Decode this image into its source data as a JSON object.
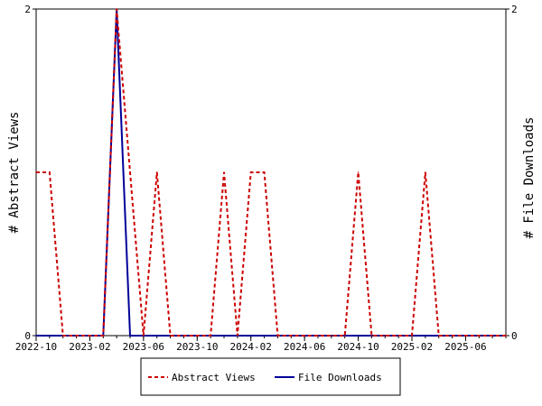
{
  "chart_data": {
    "type": "line",
    "title": "",
    "y_left_label": "# Abstract Views",
    "y_right_label": "# File Downloads",
    "y_left_range": [
      0,
      2
    ],
    "y_right_range": [
      0,
      2
    ],
    "y_left_ticks": [
      "0",
      "2"
    ],
    "y_right_ticks": [
      "0",
      "2"
    ],
    "x_range": [
      "2022-10",
      "2025-09"
    ],
    "x_tick_labels": [
      "2022-10",
      "2023-02",
      "2023-06",
      "2023-10",
      "2024-02",
      "2024-06",
      "2024-10",
      "2025-02",
      "2025-06"
    ],
    "legend_placement": "bottom",
    "grid": false,
    "series": [
      {
        "name": "Abstract Views",
        "color": "#cc0000",
        "style": "dashed",
        "axis": "left",
        "points": [
          [
            "2022-10",
            1
          ],
          [
            "2022-11",
            1
          ],
          [
            "2022-12",
            0
          ],
          [
            "2023-01",
            0
          ],
          [
            "2023-02",
            0
          ],
          [
            "2023-03",
            0
          ],
          [
            "2023-04",
            2
          ],
          [
            "2023-05",
            1
          ],
          [
            "2023-06",
            0
          ],
          [
            "2023-07",
            1
          ],
          [
            "2023-08",
            0
          ],
          [
            "2023-09",
            0
          ],
          [
            "2023-10",
            0
          ],
          [
            "2023-11",
            0
          ],
          [
            "2023-12",
            1
          ],
          [
            "2024-01",
            0
          ],
          [
            "2024-02",
            1
          ],
          [
            "2024-03",
            1
          ],
          [
            "2024-04",
            0
          ],
          [
            "2024-05",
            0
          ],
          [
            "2024-06",
            0
          ],
          [
            "2024-07",
            0
          ],
          [
            "2024-08",
            0
          ],
          [
            "2024-09",
            0
          ],
          [
            "2024-10",
            1
          ],
          [
            "2024-11",
            0
          ],
          [
            "2024-12",
            0
          ],
          [
            "2025-01",
            0
          ],
          [
            "2025-02",
            0
          ],
          [
            "2025-03",
            1
          ],
          [
            "2025-04",
            0
          ],
          [
            "2025-05",
            0
          ],
          [
            "2025-06",
            0
          ],
          [
            "2025-07",
            0
          ],
          [
            "2025-08",
            0
          ],
          [
            "2025-09",
            0
          ]
        ]
      },
      {
        "name": "File Downloads",
        "color": "#000099",
        "style": "solid",
        "axis": "right",
        "points": [
          [
            "2022-10",
            0
          ],
          [
            "2022-11",
            0
          ],
          [
            "2022-12",
            0
          ],
          [
            "2023-01",
            0
          ],
          [
            "2023-02",
            0
          ],
          [
            "2023-03",
            0
          ],
          [
            "2023-04",
            2
          ],
          [
            "2023-05",
            0
          ],
          [
            "2023-06",
            0
          ],
          [
            "2023-07",
            0
          ],
          [
            "2023-08",
            0
          ],
          [
            "2023-09",
            0
          ],
          [
            "2023-10",
            0
          ],
          [
            "2023-11",
            0
          ],
          [
            "2023-12",
            0
          ],
          [
            "2024-01",
            0
          ],
          [
            "2024-02",
            0
          ],
          [
            "2024-03",
            0
          ],
          [
            "2024-04",
            0
          ],
          [
            "2024-05",
            0
          ],
          [
            "2024-06",
            0
          ],
          [
            "2024-07",
            0
          ],
          [
            "2024-08",
            0
          ],
          [
            "2024-09",
            0
          ],
          [
            "2024-10",
            0
          ],
          [
            "2024-11",
            0
          ],
          [
            "2024-12",
            0
          ],
          [
            "2025-01",
            0
          ],
          [
            "2025-02",
            0
          ],
          [
            "2025-03",
            0
          ],
          [
            "2025-04",
            0
          ],
          [
            "2025-05",
            0
          ],
          [
            "2025-06",
            0
          ],
          [
            "2025-07",
            0
          ],
          [
            "2025-08",
            0
          ],
          [
            "2025-09",
            0
          ]
        ]
      }
    ]
  }
}
